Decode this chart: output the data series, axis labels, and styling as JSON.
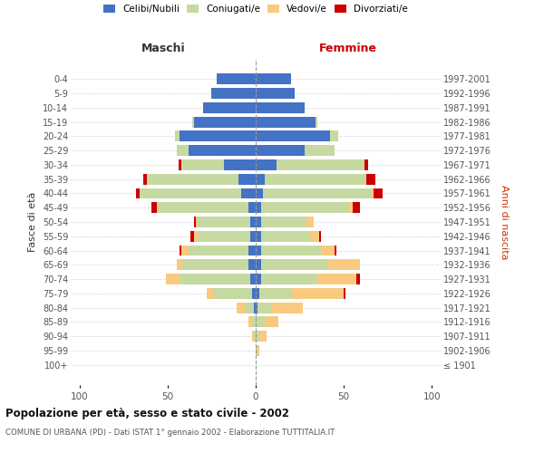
{
  "age_groups": [
    "0-4",
    "5-9",
    "10-14",
    "15-19",
    "20-24",
    "25-29",
    "30-34",
    "35-39",
    "40-44",
    "45-49",
    "50-54",
    "55-59",
    "60-64",
    "65-69",
    "70-74",
    "75-79",
    "80-84",
    "85-89",
    "90-94",
    "95-99",
    "100+"
  ],
  "birth_years": [
    "1997-2001",
    "1992-1996",
    "1987-1991",
    "1982-1986",
    "1977-1981",
    "1972-1976",
    "1967-1971",
    "1962-1966",
    "1957-1961",
    "1952-1956",
    "1947-1951",
    "1942-1946",
    "1937-1941",
    "1932-1936",
    "1927-1931",
    "1922-1926",
    "1917-1921",
    "1912-1916",
    "1907-1911",
    "1902-1906",
    "≤ 1901"
  ],
  "colors": {
    "celibe": "#4472C4",
    "coniugato": "#C6D9A0",
    "vedovo": "#FAC980",
    "divorziato": "#CC0000"
  },
  "maschi": {
    "celibe": [
      22,
      25,
      30,
      35,
      43,
      38,
      18,
      10,
      8,
      4,
      3,
      3,
      4,
      4,
      3,
      2,
      1,
      0,
      0,
      0,
      0
    ],
    "coniugato": [
      0,
      0,
      0,
      1,
      3,
      7,
      24,
      52,
      58,
      52,
      30,
      30,
      34,
      38,
      40,
      22,
      5,
      2,
      1,
      0,
      0
    ],
    "vedovo": [
      0,
      0,
      0,
      0,
      0,
      0,
      0,
      0,
      0,
      0,
      1,
      2,
      4,
      3,
      8,
      4,
      5,
      2,
      1,
      0,
      0
    ],
    "divorziato": [
      0,
      0,
      0,
      0,
      0,
      0,
      2,
      2,
      2,
      3,
      1,
      2,
      1,
      0,
      0,
      0,
      0,
      0,
      0,
      0,
      0
    ]
  },
  "femmine": {
    "nubile": [
      20,
      22,
      28,
      34,
      42,
      28,
      12,
      5,
      4,
      3,
      3,
      3,
      3,
      3,
      3,
      2,
      1,
      0,
      0,
      0,
      0
    ],
    "coniugata": [
      0,
      0,
      0,
      1,
      5,
      17,
      50,
      58,
      62,
      50,
      26,
      28,
      34,
      38,
      32,
      18,
      8,
      5,
      2,
      1,
      0
    ],
    "vedova": [
      0,
      0,
      0,
      0,
      0,
      0,
      0,
      0,
      1,
      2,
      4,
      5,
      8,
      18,
      22,
      30,
      18,
      8,
      4,
      1,
      0
    ],
    "divorziata": [
      0,
      0,
      0,
      0,
      0,
      0,
      2,
      5,
      5,
      4,
      0,
      1,
      1,
      0,
      2,
      1,
      0,
      0,
      0,
      0,
      0
    ]
  },
  "xlim": [
    -105,
    105
  ],
  "xticks": [
    -100,
    -50,
    0,
    50,
    100
  ],
  "xticklabels": [
    "100",
    "50",
    "0",
    "50",
    "100"
  ],
  "title": "Popolazione per età, sesso e stato civile - 2002",
  "subtitle": "COMUNE DI URBANA (PD) - Dati ISTAT 1° gennaio 2002 - Elaborazione TUTTITALIA.IT",
  "ylabel_left": "Fasce di età",
  "ylabel_right": "Anni di nascita",
  "label_maschi": "Maschi",
  "label_femmine": "Femmine",
  "legend_labels": [
    "Celibi/Nubili",
    "Coniugati/e",
    "Vedovi/e",
    "Divorziati/e"
  ],
  "bg_color": "#FFFFFF",
  "grid_color": "#DDDDDD",
  "bar_height": 0.75
}
